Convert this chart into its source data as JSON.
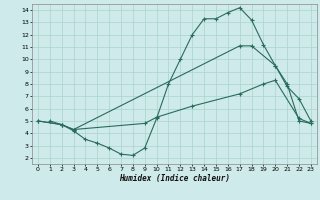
{
  "xlabel": "Humidex (Indice chaleur)",
  "bg_color": "#ceeaea",
  "line_color": "#2a6b5e",
  "grid_color": "#aad4cc",
  "xlim": [
    -0.5,
    23.5
  ],
  "ylim": [
    1.5,
    14.5
  ],
  "xticks": [
    0,
    1,
    2,
    3,
    4,
    5,
    6,
    7,
    8,
    9,
    10,
    11,
    12,
    13,
    14,
    15,
    16,
    17,
    18,
    19,
    20,
    21,
    22,
    23
  ],
  "yticks": [
    2,
    3,
    4,
    5,
    6,
    7,
    8,
    9,
    10,
    11,
    12,
    13,
    14
  ],
  "line1_x": [
    1,
    2,
    3,
    4,
    5,
    6,
    7,
    8,
    9,
    10,
    11,
    12,
    13,
    14,
    15,
    16,
    17,
    18,
    19,
    20,
    21,
    22,
    23
  ],
  "line1_y": [
    5,
    4.7,
    4.2,
    3.5,
    3.2,
    2.8,
    2.3,
    2.2,
    2.8,
    5.2,
    8.0,
    10.0,
    12.0,
    13.3,
    13.3,
    13.8,
    14.2,
    13.2,
    11.2,
    9.5,
    7.8,
    6.8,
    5.0
  ],
  "line2_x": [
    0,
    2,
    3,
    17,
    18,
    20,
    21,
    22,
    23
  ],
  "line2_y": [
    5,
    4.7,
    4.3,
    11.1,
    11.1,
    9.5,
    8.0,
    5.0,
    4.8
  ],
  "line3_x": [
    0,
    2,
    3,
    9,
    10,
    13,
    17,
    19,
    20,
    22,
    23
  ],
  "line3_y": [
    5,
    4.7,
    4.3,
    4.8,
    5.3,
    6.2,
    7.2,
    8.0,
    8.3,
    5.2,
    4.8
  ]
}
